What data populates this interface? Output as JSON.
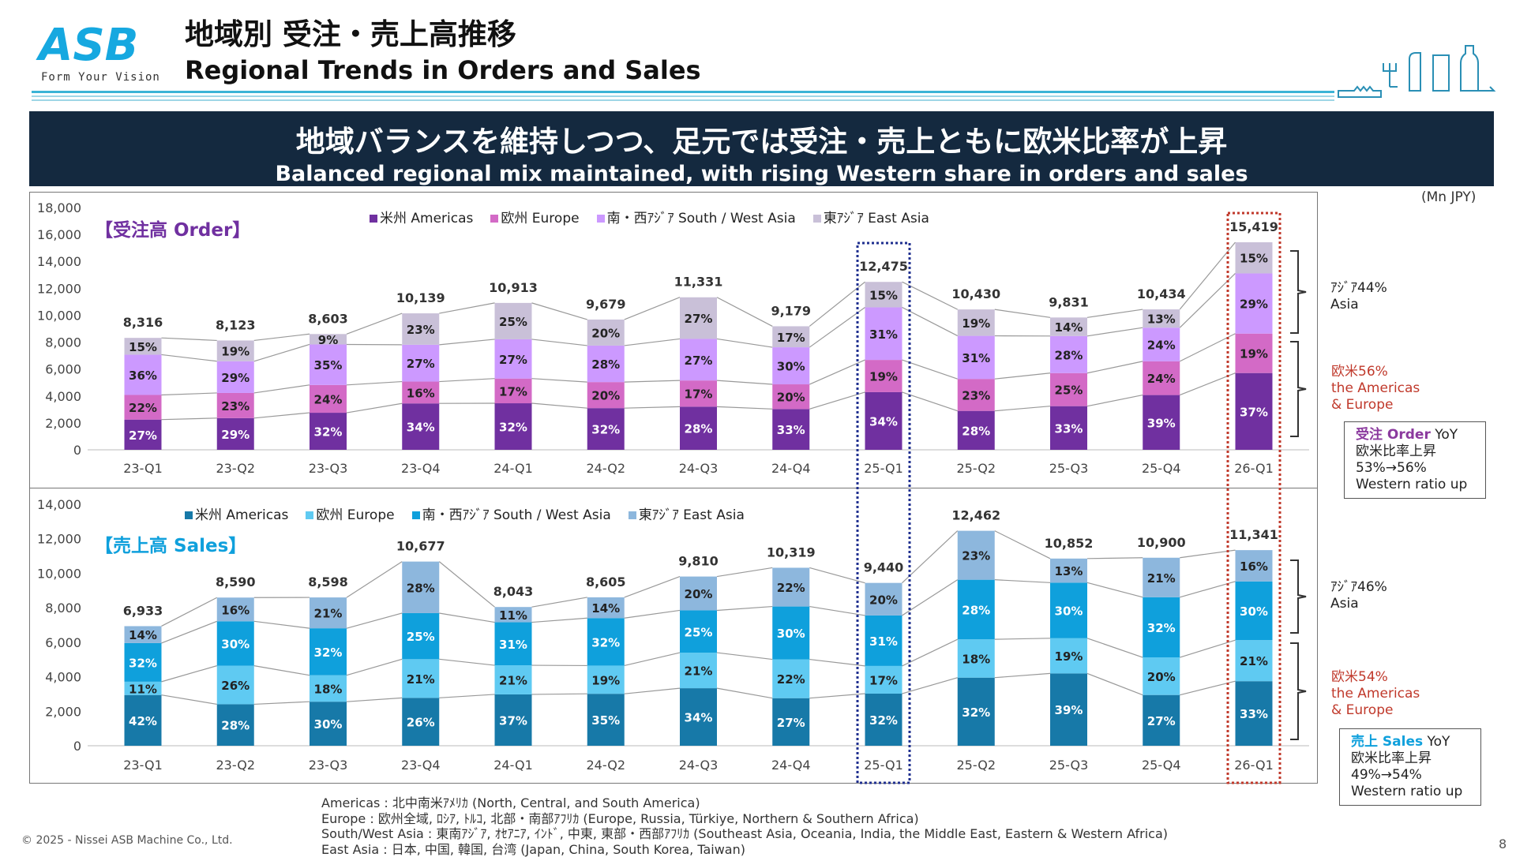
{
  "header": {
    "logo": "ASB",
    "logo_tagline": "Form Your Vision",
    "title_jp": "地域別 受注・売上高推移",
    "title_en": "Regional Trends in Orders and Sales"
  },
  "banner": {
    "headline_jp": "地域バランスを維持しつつ、足元では受注・売上ともに欧米比率が上昇",
    "headline_en": "Balanced regional mix maintained, with rising Western share in orders and sales"
  },
  "unit_label": "(Mn JPY)",
  "colors": {
    "orders": [
      "#7030a0",
      "#d36ac6",
      "#cc99ff",
      "#c9c0d8"
    ],
    "sales": [
      "#1779a8",
      "#5fcaf2",
      "#0fa0dc",
      "#8db7dd"
    ],
    "highlight_blue": "#1f2f8f",
    "highlight_red": "#c0392b"
  },
  "chart_data": [
    {
      "type": "bar",
      "stacked": true,
      "title": "【受注高 Order】",
      "categories": [
        "23-Q1",
        "23-Q2",
        "23-Q3",
        "23-Q4",
        "24-Q1",
        "24-Q2",
        "24-Q3",
        "24-Q4",
        "25-Q1",
        "25-Q2",
        "25-Q3",
        "25-Q4",
        "26-Q1"
      ],
      "totals": [
        8316,
        8123,
        8603,
        10139,
        10913,
        9679,
        11331,
        9179,
        12475,
        10430,
        9831,
        10434,
        15419
      ],
      "totals_labels": [
        "8,316",
        "8,123",
        "8,603",
        "10,139",
        "10,913",
        "9,679",
        "11,331",
        "9,179",
        "12,475",
        "10,430",
        "9,831",
        "10,434",
        "15,419"
      ],
      "series": [
        {
          "name": "米州 Americas",
          "values_pct": [
            27,
            29,
            32,
            34,
            32,
            32,
            28,
            33,
            34,
            28,
            33,
            39,
            37
          ]
        },
        {
          "name": "欧州 Europe",
          "values_pct": [
            22,
            23,
            24,
            16,
            17,
            20,
            17,
            20,
            19,
            23,
            25,
            24,
            19
          ]
        },
        {
          "name": "南・西ｱｼﾞｱ South / West Asia",
          "values_pct": [
            36,
            29,
            35,
            27,
            27,
            28,
            27,
            30,
            31,
            31,
            28,
            24,
            29
          ]
        },
        {
          "name": "東ｱｼﾞｱ East Asia",
          "values_pct": [
            15,
            19,
            9,
            23,
            25,
            20,
            27,
            17,
            15,
            19,
            14,
            13,
            15
          ]
        }
      ],
      "ylim": [
        0,
        18000
      ],
      "yticks": [
        "0",
        "2,000",
        "4,000",
        "6,000",
        "8,000",
        "10,000",
        "12,000",
        "14,000",
        "16,000",
        "18,000"
      ],
      "legend": "top",
      "highlighted": [
        "25-Q1",
        "26-Q1"
      ]
    },
    {
      "type": "bar",
      "stacked": true,
      "title": "【売上高 Sales】",
      "categories": [
        "23-Q1",
        "23-Q2",
        "23-Q3",
        "23-Q4",
        "24-Q1",
        "24-Q2",
        "24-Q3",
        "24-Q4",
        "25-Q1",
        "25-Q2",
        "25-Q3",
        "25-Q4",
        "26-Q1"
      ],
      "totals": [
        6933,
        8590,
        8598,
        10677,
        8043,
        8605,
        9810,
        10319,
        9440,
        12462,
        10852,
        10900,
        11341
      ],
      "totals_labels": [
        "6,933",
        "8,590",
        "8,598",
        "10,677",
        "8,043",
        "8,605",
        "9,810",
        "10,319",
        "9,440",
        "12,462",
        "10,852",
        "10,900",
        "11,341"
      ],
      "series": [
        {
          "name": "米州 Americas",
          "values_pct": [
            42,
            28,
            30,
            26,
            37,
            35,
            34,
            27,
            32,
            32,
            39,
            27,
            33
          ]
        },
        {
          "name": "欧州 Europe",
          "values_pct": [
            11,
            26,
            18,
            21,
            21,
            19,
            21,
            22,
            17,
            18,
            19,
            20,
            21
          ]
        },
        {
          "name": "南・西ｱｼﾞｱ South / West Asia",
          "values_pct": [
            32,
            30,
            32,
            25,
            31,
            32,
            25,
            30,
            31,
            28,
            30,
            32,
            30
          ]
        },
        {
          "name": "東ｱｼﾞｱ East Asia",
          "values_pct": [
            14,
            16,
            21,
            28,
            11,
            14,
            20,
            22,
            20,
            23,
            13,
            21,
            16
          ]
        }
      ],
      "ylim": [
        0,
        14000
      ],
      "yticks": [
        "0",
        "2,000",
        "4,000",
        "6,000",
        "8,000",
        "10,000",
        "12,000",
        "14,000"
      ],
      "legend": "top",
      "highlighted": [
        "25-Q1",
        "26-Q1"
      ]
    }
  ],
  "annotations": {
    "orders": {
      "asia": [
        "ｱｼﾞｱ44%",
        "Asia"
      ],
      "west": [
        "欧米56%",
        "the Americas",
        "& Europe"
      ],
      "callout_label_jp": "受注 Order",
      "callout_yoy": " YoY",
      "callout_lines": [
        "欧米比率上昇",
        "53%→56%",
        "Western ratio up"
      ]
    },
    "sales": {
      "asia": [
        "ｱｼﾞｱ46%",
        "Asia"
      ],
      "west": [
        "欧米54%",
        "the Americas",
        "& Europe"
      ],
      "callout_label_jp": "売上 Sales",
      "callout_yoy": " YoY",
      "callout_lines": [
        "欧米比率上昇",
        "49%→54%",
        "Western ratio up"
      ]
    }
  },
  "footnotes": [
    "Americas : 北中南米ｱﾒﾘｶ (North, Central, and South America)",
    "Europe : 欧州全域, ﾛｼｱ, ﾄﾙｺ, 北部・南部ｱﾌﾘｶ (Europe, Russia, Türkiye, Northern & Southern Africa)",
    "South/West Asia : 東南ｱｼﾞｱ, ｵｾｱﾆｱ, ｲﾝﾄﾞ, 中東, 東部・西部ｱﾌﾘｶ (Southeast Asia, Oceania, India, the Middle East, Eastern & Western Africa)",
    "East Asia : 日本, 中国, 韓国, 台湾 (Japan, China, South Korea, Taiwan)"
  ],
  "copyright": "© 2025 - Nissei ASB Machine Co., Ltd.",
  "page_number": "8"
}
